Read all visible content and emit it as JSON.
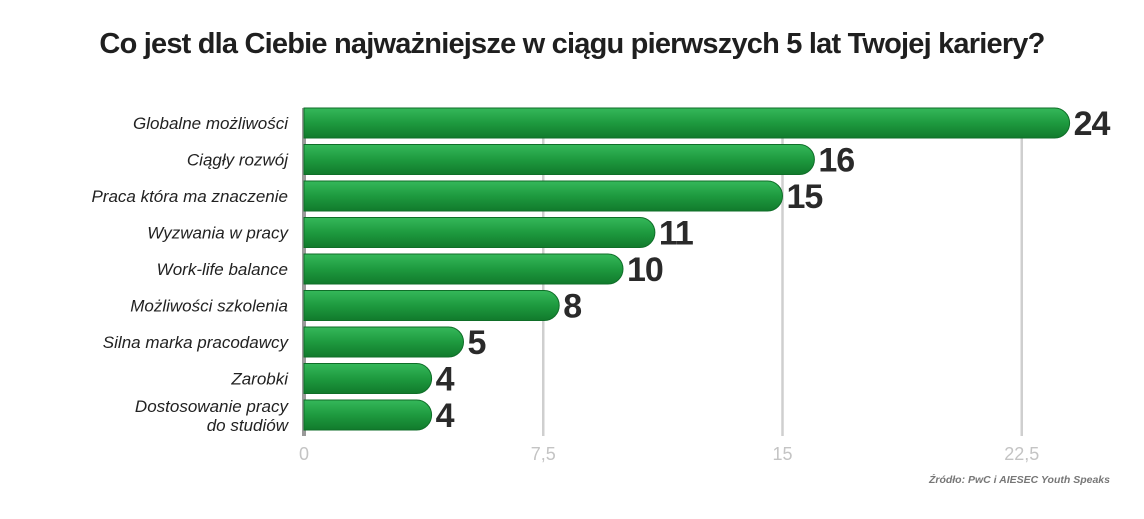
{
  "chart_data": {
    "type": "bar",
    "orientation": "horizontal",
    "title": "Co jest dla Ciebie najważniejsze w ciągu pierwszych 5 lat Twojej kariery?",
    "categories": [
      "Globalne możliwości",
      "Ciągły rozwój",
      "Praca która ma znaczenie",
      "Wyzwania w pracy",
      "Work-life balance",
      "Możliwości szkolenia",
      "Silna marka pracodawcy",
      "Zarobki",
      "Dostosowanie pracy do studiów"
    ],
    "values": [
      24,
      16,
      15,
      11,
      10,
      8,
      5,
      4,
      4
    ],
    "x_ticks": [
      0,
      7.5,
      15,
      22.5
    ],
    "x_tick_labels": [
      "0",
      "7,5",
      "15",
      "22,5"
    ],
    "xlim": [
      0,
      24
    ],
    "grid": true,
    "bar_color": "#1e9a3f",
    "source": "Źródło: PwC i AIESEC Youth Speaks"
  }
}
